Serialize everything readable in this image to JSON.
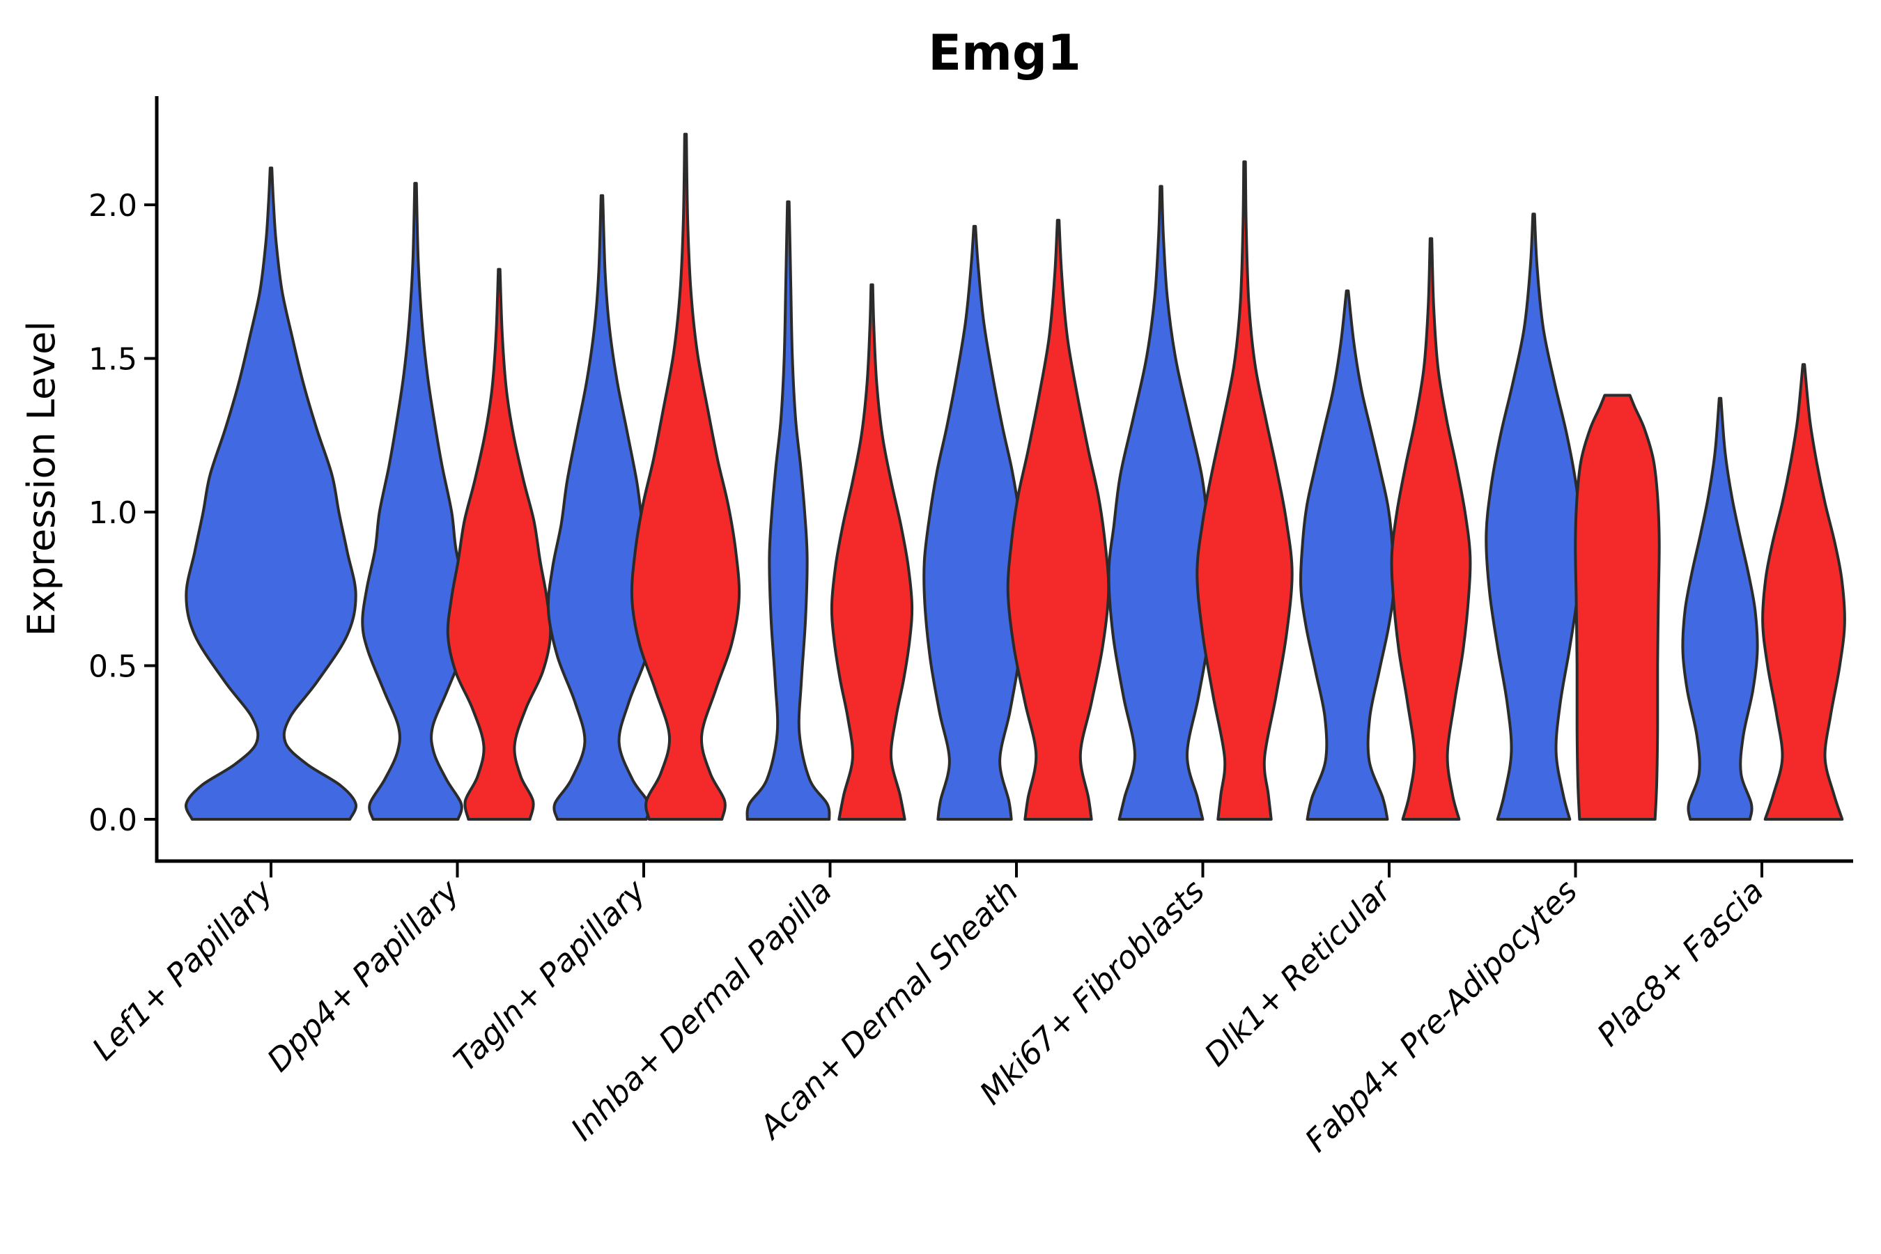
{
  "colors": {
    "violin_blue": "#4169E1",
    "violin_red": "#F42A2A",
    "outline": "#2B2B2B",
    "axis": "#000000",
    "background": "#FFFFFF"
  },
  "chart_data": {
    "type": "violin",
    "title": "Emg1",
    "ylabel": "Expression Level",
    "xlabel": "",
    "yticks": [
      0.0,
      0.5,
      1.0,
      1.5,
      2.0
    ],
    "ylim": [
      0,
      2.36
    ],
    "grid": false,
    "legend": "none",
    "x_tick_rotation": 45,
    "categories": [
      "Lef1+ Papillary",
      "Dpp4+ Papillary",
      "Tagln+ Papillary",
      "Inhba+ Dermal Papilla",
      "Acan+ Dermal Sheath",
      "Mki67+ Fibroblasts",
      "Dlk1+ Reticular",
      "Fabp4+ Pre-Adipocytes",
      "Plac8+ Fascia"
    ],
    "groups": [
      {
        "id": "blue",
        "color": "#4169E1"
      },
      {
        "id": "red",
        "color": "#F42A2A"
      }
    ],
    "violins": [
      {
        "category": "Lef1+ Papillary",
        "group": "blue",
        "single": true,
        "max_expression": 2.12,
        "width": 0.91,
        "profile": [
          [
            0,
            0.93
          ],
          [
            0.05,
            1.0
          ],
          [
            0.11,
            0.82
          ],
          [
            0.18,
            0.42
          ],
          [
            0.25,
            0.17
          ],
          [
            0.33,
            0.22
          ],
          [
            0.45,
            0.55
          ],
          [
            0.6,
            0.9
          ],
          [
            0.73,
            1.0
          ],
          [
            0.87,
            0.9
          ],
          [
            1.0,
            0.8
          ],
          [
            1.12,
            0.72
          ],
          [
            1.27,
            0.54
          ],
          [
            1.42,
            0.38
          ],
          [
            1.57,
            0.25
          ],
          [
            1.72,
            0.13
          ],
          [
            1.88,
            0.06
          ],
          [
            2.0,
            0.03
          ],
          [
            2.12,
            0.008
          ]
        ]
      },
      {
        "category": "Dpp4+ Papillary",
        "group": "blue",
        "single": false,
        "max_expression": 2.07,
        "width": 0.57,
        "profile": [
          [
            0,
            0.8
          ],
          [
            0.05,
            0.86
          ],
          [
            0.13,
            0.58
          ],
          [
            0.22,
            0.34
          ],
          [
            0.3,
            0.32
          ],
          [
            0.42,
            0.6
          ],
          [
            0.55,
            0.9
          ],
          [
            0.64,
            1.0
          ],
          [
            0.75,
            0.92
          ],
          [
            0.88,
            0.76
          ],
          [
            1.0,
            0.68
          ],
          [
            1.15,
            0.5
          ],
          [
            1.3,
            0.35
          ],
          [
            1.45,
            0.22
          ],
          [
            1.62,
            0.12
          ],
          [
            1.82,
            0.05
          ],
          [
            2.07,
            0.008
          ]
        ]
      },
      {
        "category": "Dpp4+ Papillary",
        "group": "red",
        "single": false,
        "max_expression": 1.79,
        "width": 0.55,
        "profile": [
          [
            0,
            0.6
          ],
          [
            0.06,
            0.66
          ],
          [
            0.14,
            0.42
          ],
          [
            0.24,
            0.3
          ],
          [
            0.36,
            0.52
          ],
          [
            0.48,
            0.85
          ],
          [
            0.6,
            1.0
          ],
          [
            0.72,
            0.93
          ],
          [
            0.84,
            0.8
          ],
          [
            0.97,
            0.68
          ],
          [
            1.1,
            0.48
          ],
          [
            1.25,
            0.28
          ],
          [
            1.4,
            0.14
          ],
          [
            1.58,
            0.06
          ],
          [
            1.79,
            0.008
          ]
        ]
      },
      {
        "category": "Tagln+ Papillary",
        "group": "blue",
        "single": false,
        "max_expression": 2.03,
        "width": 0.575,
        "profile": [
          [
            0,
            0.83
          ],
          [
            0.05,
            0.88
          ],
          [
            0.13,
            0.57
          ],
          [
            0.25,
            0.32
          ],
          [
            0.38,
            0.5
          ],
          [
            0.53,
            0.83
          ],
          [
            0.68,
            1.0
          ],
          [
            0.82,
            0.92
          ],
          [
            0.96,
            0.76
          ],
          [
            1.1,
            0.65
          ],
          [
            1.27,
            0.46
          ],
          [
            1.43,
            0.28
          ],
          [
            1.6,
            0.14
          ],
          [
            1.78,
            0.06
          ],
          [
            2.03,
            0.008
          ]
        ]
      },
      {
        "category": "Tagln+ Papillary",
        "group": "red",
        "single": false,
        "max_expression": 2.23,
        "width": 0.575,
        "profile": [
          [
            0,
            0.68
          ],
          [
            0.06,
            0.73
          ],
          [
            0.15,
            0.46
          ],
          [
            0.27,
            0.3
          ],
          [
            0.42,
            0.56
          ],
          [
            0.57,
            0.86
          ],
          [
            0.72,
            1.0
          ],
          [
            0.87,
            0.94
          ],
          [
            1.02,
            0.8
          ],
          [
            1.17,
            0.6
          ],
          [
            1.33,
            0.42
          ],
          [
            1.52,
            0.22
          ],
          [
            1.72,
            0.1
          ],
          [
            1.95,
            0.04
          ],
          [
            2.23,
            0.008
          ]
        ]
      },
      {
        "category": "Inhba+ Dermal Papilla",
        "group": "blue",
        "single": false,
        "max_expression": 2.01,
        "width": 0.44,
        "profile": [
          [
            0,
            1.0
          ],
          [
            0.05,
            0.95
          ],
          [
            0.13,
            0.52
          ],
          [
            0.28,
            0.27
          ],
          [
            0.45,
            0.32
          ],
          [
            0.65,
            0.42
          ],
          [
            0.85,
            0.46
          ],
          [
            1.0,
            0.4
          ],
          [
            1.15,
            0.3
          ],
          [
            1.3,
            0.18
          ],
          [
            1.5,
            0.1
          ],
          [
            1.75,
            0.06
          ],
          [
            2.01,
            0.015
          ]
        ]
      },
      {
        "category": "Inhba+ Dermal Papilla",
        "group": "red",
        "single": false,
        "max_expression": 1.74,
        "width": 0.43,
        "profile": [
          [
            0,
            0.82
          ],
          [
            0.08,
            0.7
          ],
          [
            0.2,
            0.48
          ],
          [
            0.33,
            0.6
          ],
          [
            0.46,
            0.8
          ],
          [
            0.59,
            0.95
          ],
          [
            0.7,
            1.0
          ],
          [
            0.83,
            0.9
          ],
          [
            0.96,
            0.72
          ],
          [
            1.1,
            0.48
          ],
          [
            1.25,
            0.26
          ],
          [
            1.42,
            0.12
          ],
          [
            1.6,
            0.05
          ],
          [
            1.74,
            0.015
          ]
        ]
      },
      {
        "category": "Acan+ Dermal Sheath",
        "group": "blue",
        "single": false,
        "max_expression": 1.93,
        "width": 0.54,
        "profile": [
          [
            0,
            0.73
          ],
          [
            0.06,
            0.68
          ],
          [
            0.19,
            0.5
          ],
          [
            0.35,
            0.7
          ],
          [
            0.52,
            0.88
          ],
          [
            0.7,
            0.99
          ],
          [
            0.84,
            1.0
          ],
          [
            0.98,
            0.9
          ],
          [
            1.13,
            0.75
          ],
          [
            1.28,
            0.55
          ],
          [
            1.45,
            0.35
          ],
          [
            1.62,
            0.18
          ],
          [
            1.8,
            0.07
          ],
          [
            1.93,
            0.012
          ]
        ]
      },
      {
        "category": "Acan+ Dermal Sheath",
        "group": "red",
        "single": false,
        "max_expression": 1.95,
        "width": 0.54,
        "profile": [
          [
            0,
            0.66
          ],
          [
            0.07,
            0.6
          ],
          [
            0.21,
            0.44
          ],
          [
            0.38,
            0.66
          ],
          [
            0.56,
            0.88
          ],
          [
            0.74,
            1.0
          ],
          [
            0.9,
            0.93
          ],
          [
            1.05,
            0.8
          ],
          [
            1.2,
            0.6
          ],
          [
            1.38,
            0.38
          ],
          [
            1.57,
            0.18
          ],
          [
            1.77,
            0.07
          ],
          [
            1.95,
            0.012
          ]
        ]
      },
      {
        "category": "Mki67+ Fibroblasts",
        "group": "blue",
        "single": false,
        "max_expression": 2.06,
        "width": 0.56,
        "profile": [
          [
            0,
            0.8
          ],
          [
            0.07,
            0.7
          ],
          [
            0.21,
            0.5
          ],
          [
            0.4,
            0.72
          ],
          [
            0.6,
            0.92
          ],
          [
            0.8,
            1.0
          ],
          [
            0.96,
            0.9
          ],
          [
            1.12,
            0.78
          ],
          [
            1.3,
            0.54
          ],
          [
            1.5,
            0.28
          ],
          [
            1.7,
            0.12
          ],
          [
            1.9,
            0.045
          ],
          [
            2.06,
            0.008
          ]
        ]
      },
      {
        "category": "Mki67+ Fibroblasts",
        "group": "red",
        "single": false,
        "max_expression": 2.14,
        "width": 0.51,
        "profile": [
          [
            0,
            0.56
          ],
          [
            0.08,
            0.5
          ],
          [
            0.2,
            0.42
          ],
          [
            0.4,
            0.66
          ],
          [
            0.6,
            0.88
          ],
          [
            0.8,
            1.0
          ],
          [
            0.97,
            0.88
          ],
          [
            1.12,
            0.7
          ],
          [
            1.3,
            0.45
          ],
          [
            1.48,
            0.22
          ],
          [
            1.68,
            0.09
          ],
          [
            1.92,
            0.035
          ],
          [
            2.14,
            0.008
          ]
        ]
      },
      {
        "category": "Dlk1+ Reticular",
        "group": "blue",
        "single": false,
        "max_expression": 1.72,
        "width": 0.5,
        "profile": [
          [
            0,
            0.86
          ],
          [
            0.07,
            0.76
          ],
          [
            0.19,
            0.47
          ],
          [
            0.33,
            0.48
          ],
          [
            0.48,
            0.68
          ],
          [
            0.63,
            0.89
          ],
          [
            0.76,
            1.0
          ],
          [
            0.9,
            0.96
          ],
          [
            1.02,
            0.87
          ],
          [
            1.14,
            0.7
          ],
          [
            1.27,
            0.5
          ],
          [
            1.4,
            0.3
          ],
          [
            1.55,
            0.14
          ],
          [
            1.72,
            0.02
          ]
        ]
      },
      {
        "category": "Dlk1+ Reticular",
        "group": "red",
        "single": false,
        "max_expression": 1.89,
        "width": 0.42,
        "profile": [
          [
            0,
            0.72
          ],
          [
            0.08,
            0.55
          ],
          [
            0.21,
            0.42
          ],
          [
            0.38,
            0.6
          ],
          [
            0.55,
            0.82
          ],
          [
            0.72,
            0.96
          ],
          [
            0.86,
            1.0
          ],
          [
            1.0,
            0.87
          ],
          [
            1.15,
            0.65
          ],
          [
            1.3,
            0.4
          ],
          [
            1.47,
            0.18
          ],
          [
            1.67,
            0.07
          ],
          [
            1.89,
            0.012
          ]
        ]
      },
      {
        "category": "Fabp4+ Pre-Adipocytes",
        "group": "blue",
        "single": false,
        "max_expression": 1.97,
        "width": 0.51,
        "profile": [
          [
            0,
            0.76
          ],
          [
            0.08,
            0.62
          ],
          [
            0.22,
            0.47
          ],
          [
            0.38,
            0.56
          ],
          [
            0.56,
            0.76
          ],
          [
            0.74,
            0.93
          ],
          [
            0.92,
            1.0
          ],
          [
            1.08,
            0.9
          ],
          [
            1.25,
            0.7
          ],
          [
            1.42,
            0.44
          ],
          [
            1.6,
            0.2
          ],
          [
            1.8,
            0.07
          ],
          [
            1.97,
            0.012
          ]
        ]
      },
      {
        "category": "Fabp4+ Pre-Adipocytes",
        "group": "red",
        "single": false,
        "max_expression": 1.38,
        "width": 0.45,
        "profile": [
          [
            0,
            0.9
          ],
          [
            0.12,
            0.94
          ],
          [
            0.3,
            0.96
          ],
          [
            0.5,
            0.96
          ],
          [
            0.72,
            0.98
          ],
          [
            0.9,
            1.0
          ],
          [
            1.05,
            0.96
          ],
          [
            1.17,
            0.86
          ],
          [
            1.27,
            0.65
          ],
          [
            1.34,
            0.42
          ],
          [
            1.38,
            0.3
          ]
        ]
      },
      {
        "category": "Plac8+ Fascia",
        "group": "blue",
        "single": false,
        "max_expression": 1.37,
        "width": 0.4,
        "profile": [
          [
            0,
            0.8
          ],
          [
            0.05,
            0.84
          ],
          [
            0.15,
            0.56
          ],
          [
            0.27,
            0.62
          ],
          [
            0.42,
            0.88
          ],
          [
            0.55,
            1.0
          ],
          [
            0.68,
            0.94
          ],
          [
            0.8,
            0.76
          ],
          [
            0.93,
            0.52
          ],
          [
            1.06,
            0.3
          ],
          [
            1.2,
            0.13
          ],
          [
            1.37,
            0.015
          ]
        ]
      },
      {
        "category": "Plac8+ Fascia",
        "group": "red",
        "single": false,
        "max_expression": 1.48,
        "width": 0.44,
        "profile": [
          [
            0,
            0.94
          ],
          [
            0.08,
            0.74
          ],
          [
            0.2,
            0.52
          ],
          [
            0.34,
            0.66
          ],
          [
            0.5,
            0.88
          ],
          [
            0.64,
            1.0
          ],
          [
            0.78,
            0.93
          ],
          [
            0.9,
            0.76
          ],
          [
            1.03,
            0.52
          ],
          [
            1.16,
            0.32
          ],
          [
            1.3,
            0.15
          ],
          [
            1.48,
            0.015
          ]
        ]
      }
    ]
  }
}
